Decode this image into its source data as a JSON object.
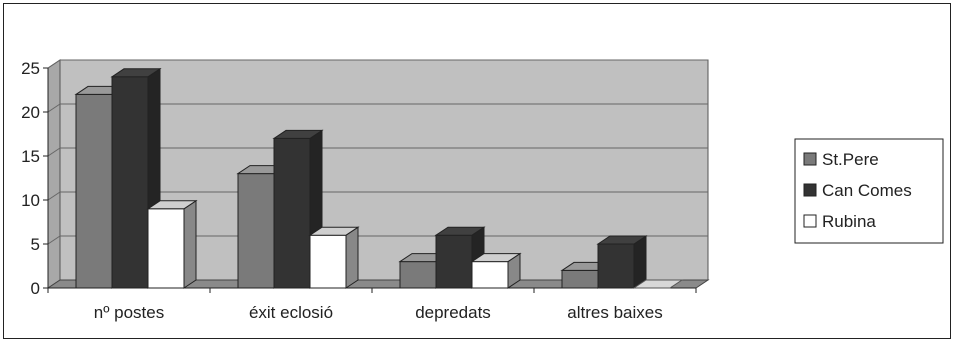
{
  "chart_data": {
    "type": "bar",
    "style": "3d-clustered",
    "title": "",
    "xlabel": "",
    "ylabel": "",
    "categories": [
      "nº postes",
      "éxit eclosió",
      "depredats",
      "altres baixes"
    ],
    "series": [
      {
        "name": "St.Pere",
        "values": [
          22,
          13,
          3,
          2
        ],
        "color": "#7a7a7a"
      },
      {
        "name": "Can Comes",
        "values": [
          24,
          17,
          6,
          5
        ],
        "color": "#333333"
      },
      {
        "name": "Rubina",
        "values": [
          9,
          6,
          3,
          0
        ],
        "color": "#ffffff"
      }
    ],
    "ylim": [
      0,
      25
    ],
    "yticks": [
      "0",
      "5",
      "10",
      "15",
      "20",
      "25"
    ],
    "grid": true,
    "plot_background": "#c0c0c0",
    "legend_position": "right"
  }
}
